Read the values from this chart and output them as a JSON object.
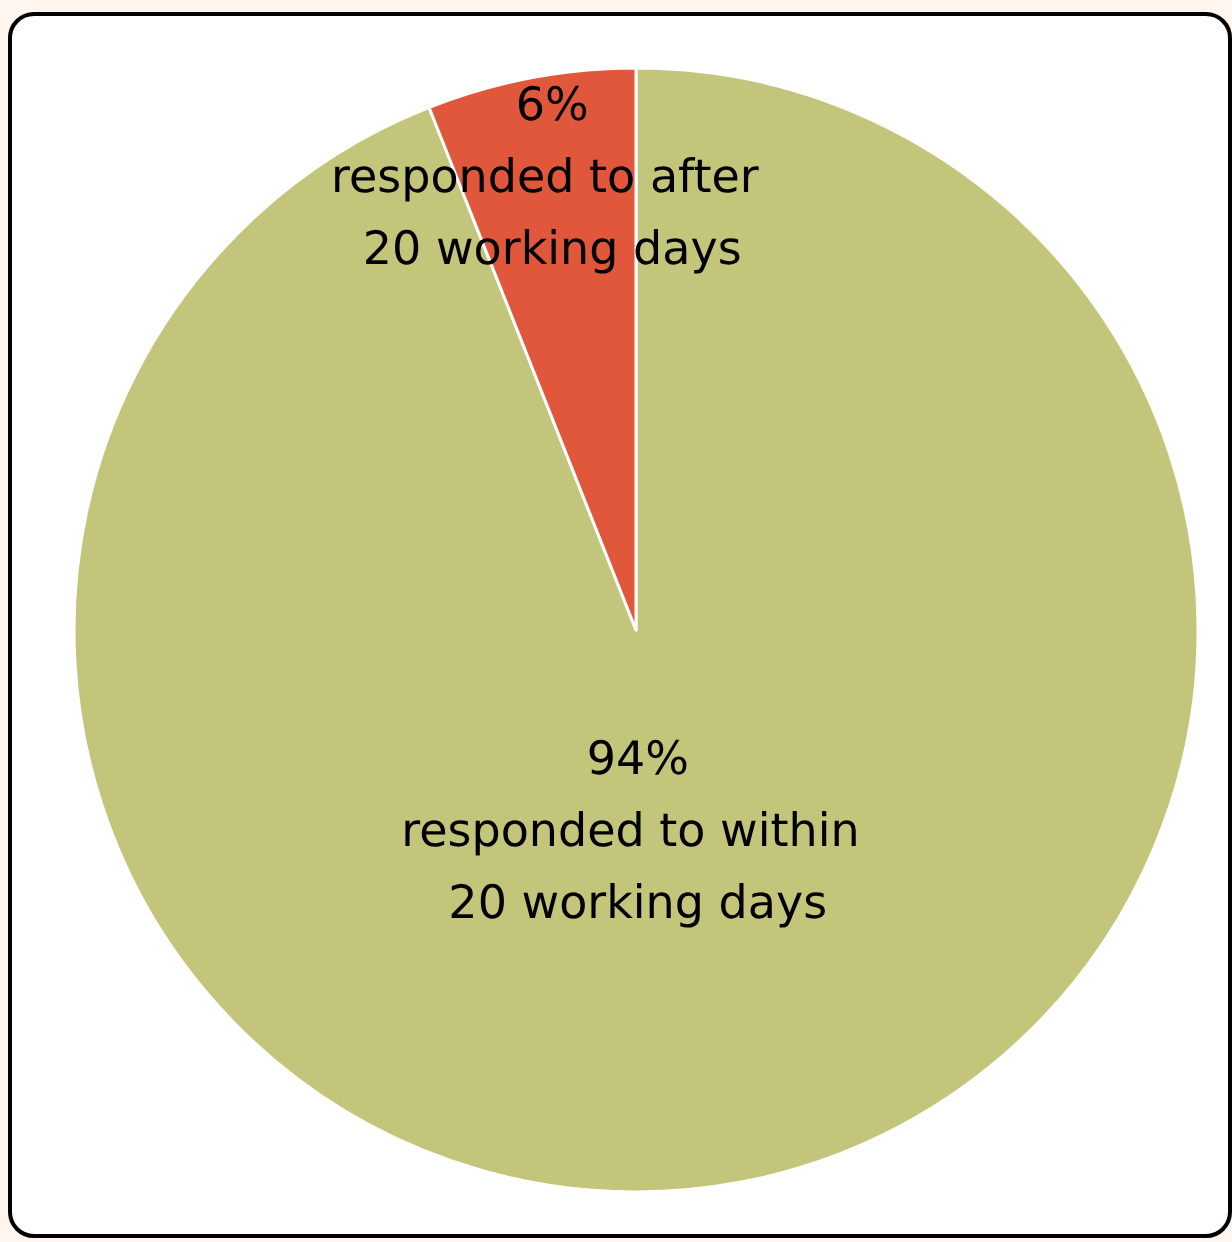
{
  "chart_data": {
    "type": "pie",
    "categories": [
      "responded to within 20 working days",
      "responded to after 20 working days"
    ],
    "values": [
      94,
      6
    ],
    "value_labels": [
      "94%",
      "6%"
    ],
    "colors": [
      "#c3c57b",
      "#e0573b"
    ]
  }
}
